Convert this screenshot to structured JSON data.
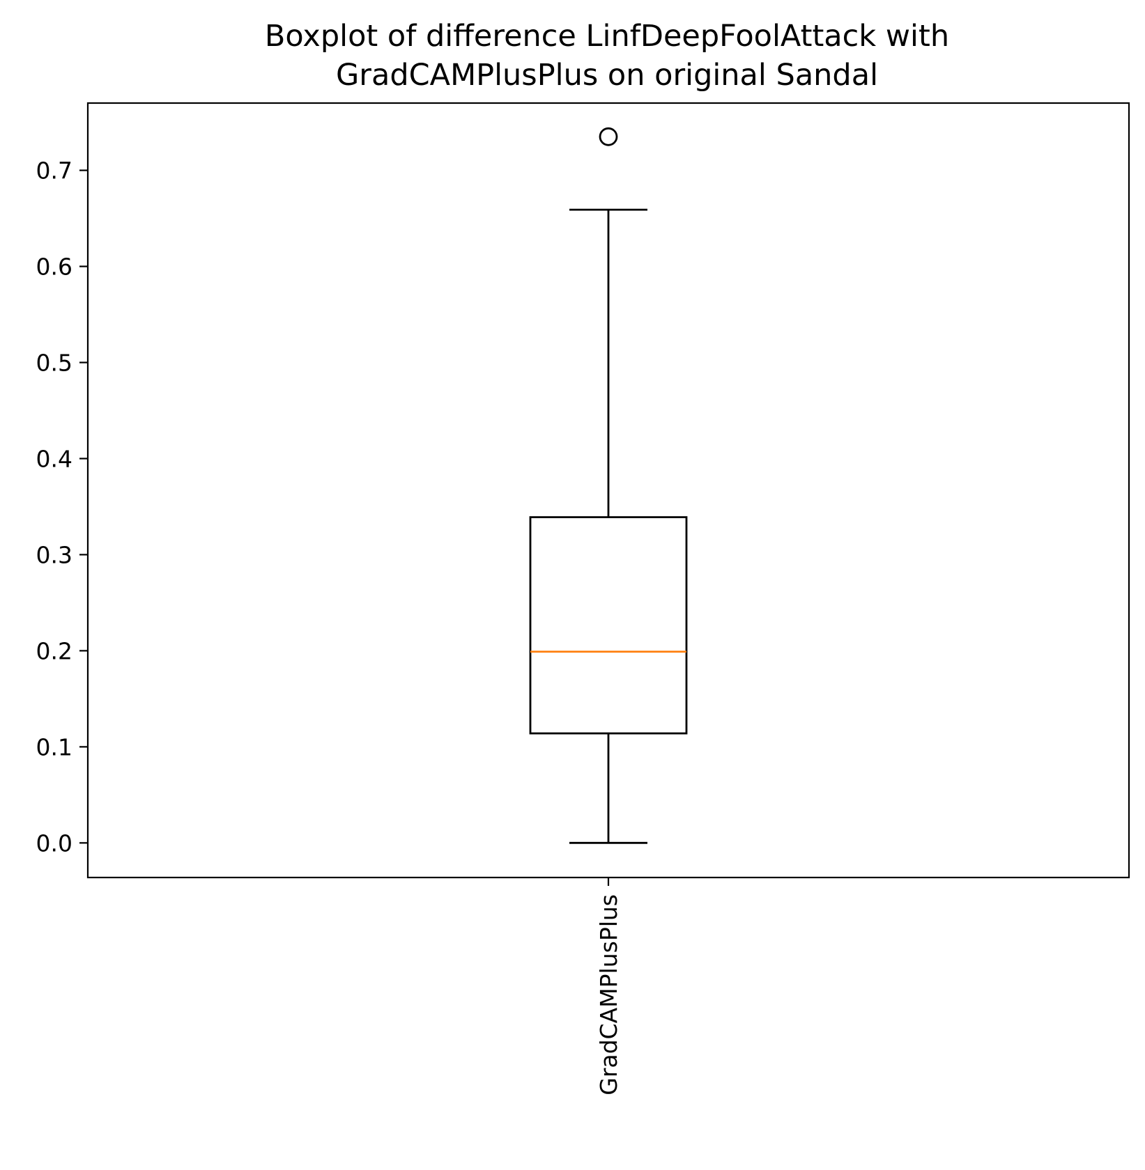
{
  "chart_data": {
    "type": "boxplot",
    "title": "Boxplot of difference LinfDeepFoolAttack with GradCAMPlusPlus on original Sandal",
    "title_lines": [
      "Boxplot of difference LinfDeepFoolAttack with",
      "GradCAMPlusPlus on original Sandal"
    ],
    "xlabel": "",
    "ylabel": "",
    "ylim": [
      -0.036,
      0.77
    ],
    "yticks": [
      0.0,
      0.1,
      0.2,
      0.3,
      0.4,
      0.5,
      0.6,
      0.7
    ],
    "ytick_labels": [
      "0.0",
      "0.1",
      "0.2",
      "0.3",
      "0.4",
      "0.5",
      "0.6",
      "0.7"
    ],
    "categories": [
      "GradCAMPlusPlus"
    ],
    "xtick_rotation": "vertical",
    "grid": false,
    "legend": "none",
    "boxes": [
      {
        "category": "GradCAMPlusPlus",
        "whisker_low": 0.0,
        "q1": 0.114,
        "median": 0.199,
        "q3": 0.339,
        "whisker_high": 0.659,
        "outliers": [
          0.735
        ]
      }
    ],
    "colors": {
      "box": "#000000",
      "median": "#ff7f0e",
      "outlier": "#000000",
      "axes": "#000000"
    }
  }
}
